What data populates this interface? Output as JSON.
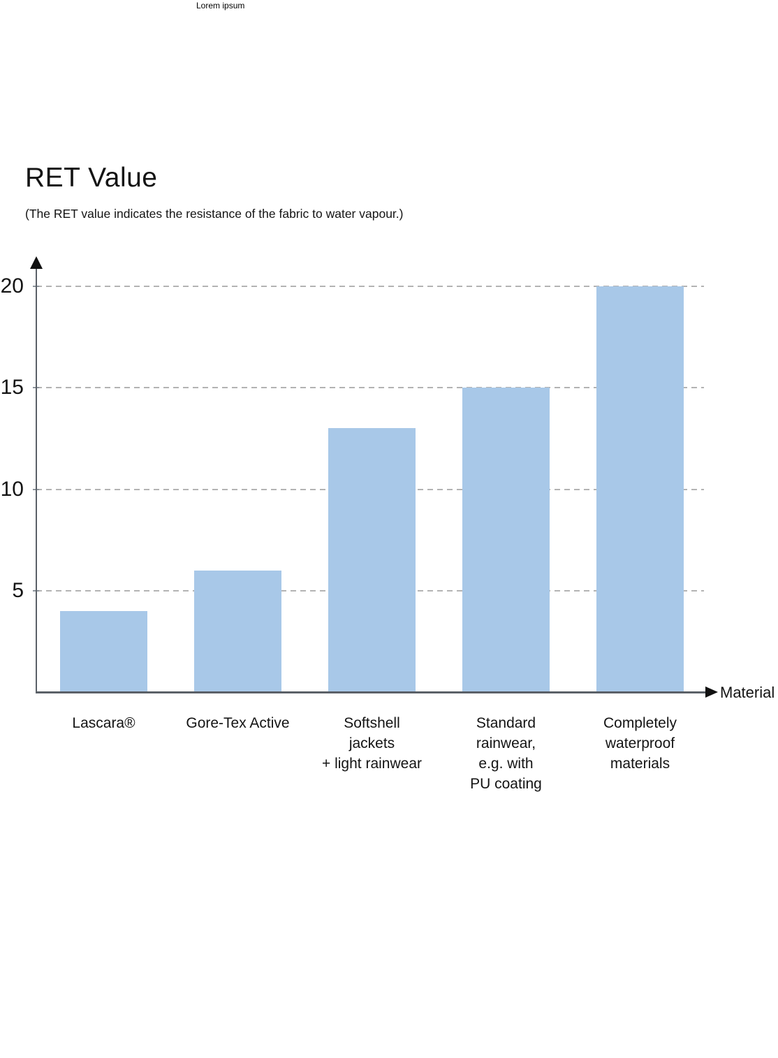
{
  "header": {
    "watermark": "Lorem ipsum"
  },
  "chart_data": {
    "type": "bar",
    "title": "RET Value",
    "subtitle": "(The RET value indicates the resistance of the fabric to water vapour.)",
    "xlabel": "Material",
    "ylabel": "",
    "categories": [
      "Lascara®",
      "Gore-Tex Active",
      "Softshell jackets + light rainwear",
      "Standard rainwear, e.g. with PU coating",
      "Completely waterproof materials"
    ],
    "category_lines": [
      [
        "Lascara®"
      ],
      [
        "Gore-Tex Active"
      ],
      [
        "Softshell",
        "jackets",
        "+ light rainwear"
      ],
      [
        "Standard",
        "rainwear,",
        "e.g. with",
        "PU coating"
      ],
      [
        "Completely",
        "waterproof",
        "materials"
      ]
    ],
    "values": [
      4,
      6,
      13,
      15,
      20
    ],
    "yticks": [
      5,
      10,
      15,
      20
    ],
    "ylim": [
      0,
      21
    ],
    "legend": "none",
    "grid": "horizontal-dashed",
    "colors": {
      "bar": "#a8c8e8",
      "axis": "#5b6168",
      "grid": "#b3b3b3",
      "arrow": "#111111",
      "text": "#141414"
    }
  }
}
